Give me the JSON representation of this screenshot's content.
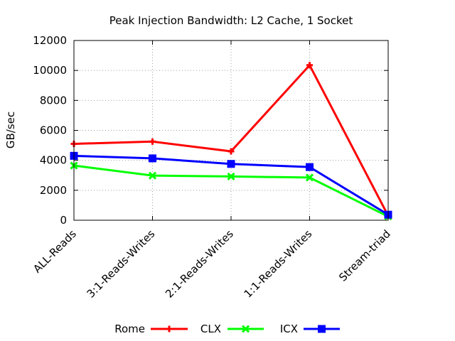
{
  "chart_data": {
    "type": "line",
    "title": "Peak Injection Bandwidth: L2 Cache, 1 Socket",
    "xlabel": "",
    "ylabel": "GB/sec",
    "categories": [
      "ALL-Reads",
      "3:1-Reads-Writes",
      "2:1-Reads-Writes",
      "1:1-Reads-Writes",
      "Stream-triad"
    ],
    "ylim": [
      0,
      12000
    ],
    "yticks": [
      "0",
      "2000",
      "4000",
      "6000",
      "8000",
      "10000",
      "12000"
    ],
    "grid": true,
    "legend_position": "bottom",
    "series": [
      {
        "name": "Rome",
        "color": "#ff0000",
        "marker": "plus",
        "values": [
          5100,
          5250,
          4600,
          10350,
          300
        ]
      },
      {
        "name": "CLX",
        "color": "#00ff00",
        "marker": "cross",
        "values": [
          3650,
          2980,
          2920,
          2850,
          250
        ]
      },
      {
        "name": "ICX",
        "color": "#0000ff",
        "marker": "box-cross",
        "values": [
          4300,
          4130,
          3760,
          3550,
          370
        ]
      }
    ]
  }
}
